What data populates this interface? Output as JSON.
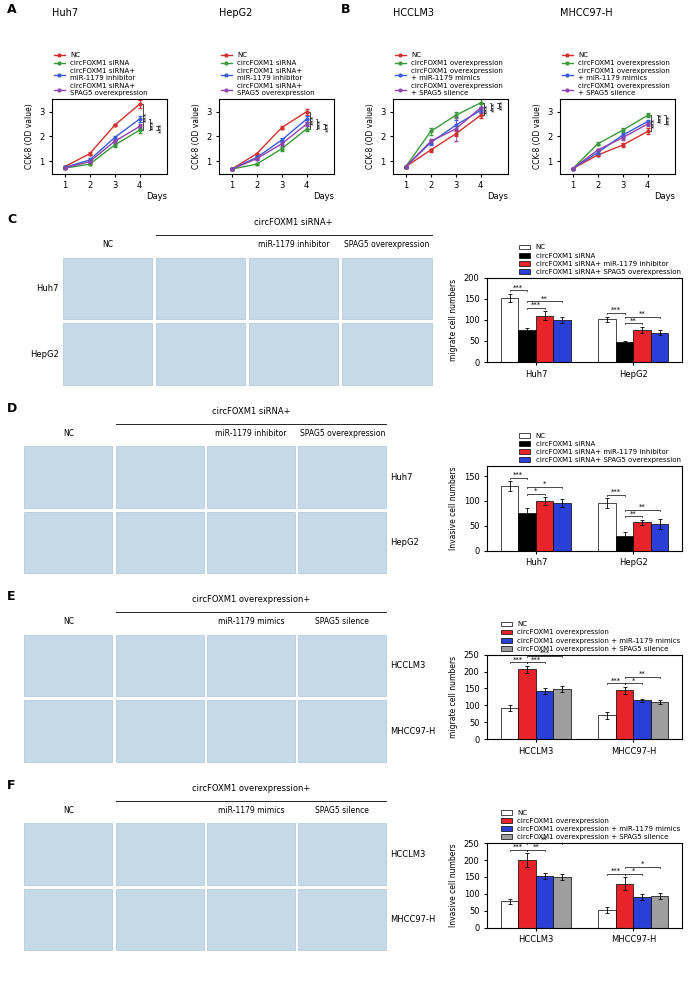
{
  "panel_labels": [
    "A",
    "B",
    "C",
    "D",
    "E",
    "F"
  ],
  "chart_data": [
    {
      "type": "line",
      "title": "Huh7",
      "y_label": "CCK-8 (OD value)",
      "x_label": "Days",
      "x": [
        1,
        2,
        3,
        4
      ],
      "xlim": [
        0.5,
        5.1
      ],
      "xticks": [
        1,
        2,
        3,
        4
      ],
      "ylim": [
        0.5,
        3.5
      ],
      "yticks": [
        1,
        2,
        3
      ],
      "grid": false,
      "legend": "lower left",
      "series": [
        {
          "name": "NC",
          "color": "#d0312d",
          "marker": "o",
          "values": [
            0.78,
            1.3,
            2.45,
            3.3
          ],
          "errors": [
            0.04,
            0.06,
            0.05,
            0.15
          ]
        },
        {
          "name": "circFOXM1 siRNA",
          "color": "#3a9a3a",
          "marker": "o",
          "values": [
            0.72,
            0.88,
            1.65,
            2.25
          ],
          "errors": [
            0.03,
            0.05,
            0.06,
            0.1
          ]
        },
        {
          "name": "circFOXM1 siRNA+\nmiR-1179 inhibitor",
          "color": "#3b5bdb",
          "marker": "o",
          "values": [
            0.75,
            1.05,
            1.95,
            2.7
          ],
          "errors": [
            0.03,
            0.06,
            0.08,
            0.12
          ]
        },
        {
          "name": "circFOXM1 siRNA+\nSPAG5 overexpression",
          "color": "#8e44ad",
          "marker": "o",
          "values": [
            0.73,
            0.98,
            1.8,
            2.4
          ],
          "errors": [
            0.03,
            0.05,
            0.07,
            0.1
          ]
        }
      ],
      "annotations": [
        {
          "text": "***",
          "between": [
            0,
            1
          ]
        },
        {
          "text": "***",
          "between": [
            1,
            2
          ]
        },
        {
          "text": "***",
          "between": [
            1,
            3
          ]
        }
      ]
    },
    {
      "type": "line",
      "title": "HepG2",
      "y_label": "CCK-8 (OD value)",
      "x_label": "Days",
      "x": [
        1,
        2,
        3,
        4
      ],
      "xlim": [
        0.5,
        5.1
      ],
      "xticks": [
        1,
        2,
        3,
        4
      ],
      "ylim": [
        0.5,
        3.5
      ],
      "yticks": [
        1,
        2,
        3
      ],
      "grid": false,
      "legend": "lower left",
      "series": [
        {
          "name": "NC",
          "color": "#d0312d",
          "marker": "o",
          "values": [
            0.68,
            1.3,
            2.35,
            3.0
          ],
          "errors": [
            0.03,
            0.05,
            0.06,
            0.12
          ]
        },
        {
          "name": "circFOXM1 siRNA",
          "color": "#3a9a3a",
          "marker": "o",
          "values": [
            0.68,
            0.88,
            1.5,
            2.3
          ],
          "errors": [
            0.03,
            0.05,
            0.07,
            0.1
          ]
        },
        {
          "name": "circFOXM1 siRNA+\nmiR-1179 inhibitor",
          "color": "#3b5bdb",
          "marker": "o",
          "values": [
            0.68,
            1.15,
            1.85,
            2.7
          ],
          "errors": [
            0.03,
            0.06,
            0.08,
            0.12
          ]
        },
        {
          "name": "circFOXM1 siRNA+\nSPAG5 overexpression",
          "color": "#8e44ad",
          "marker": "o",
          "values": [
            0.68,
            1.1,
            1.7,
            2.5
          ],
          "errors": [
            0.03,
            0.05,
            0.07,
            0.1
          ]
        }
      ],
      "annotations": [
        {
          "text": "***",
          "between": [
            0,
            1
          ]
        },
        {
          "text": "***",
          "between": [
            1,
            2
          ]
        },
        {
          "text": "***",
          "between": [
            1,
            3
          ]
        }
      ]
    },
    {
      "type": "line",
      "title": "HCCLM3",
      "y_label": "CCK-8 (OD value)",
      "x_label": "Days",
      "x": [
        1,
        2,
        3,
        4
      ],
      "xlim": [
        0.5,
        5.1
      ],
      "xticks": [
        1,
        2,
        3,
        4
      ],
      "ylim": [
        0.5,
        3.5
      ],
      "yticks": [
        1,
        2,
        3
      ],
      "grid": false,
      "legend": "lower left",
      "series": [
        {
          "name": "NC",
          "color": "#d0312d",
          "marker": "o",
          "values": [
            0.78,
            1.45,
            2.1,
            2.85
          ],
          "errors": [
            0.04,
            0.06,
            0.1,
            0.12
          ]
        },
        {
          "name": "circFOXM1 overexpression",
          "color": "#3a9a3a",
          "marker": "o",
          "values": [
            0.78,
            2.2,
            2.85,
            3.35
          ],
          "errors": [
            0.04,
            0.15,
            0.12,
            0.15
          ]
        },
        {
          "name": "circFOXM1 overexpression\n+ miR-1179 mimics",
          "color": "#3b5bdb",
          "marker": "o",
          "values": [
            0.78,
            1.75,
            2.45,
            3.05
          ],
          "errors": [
            0.04,
            0.1,
            0.2,
            0.12
          ]
        },
        {
          "name": "circFOXM1 overexpression\n+ SPAG5 silence",
          "color": "#8e44ad",
          "marker": "o",
          "values": [
            0.78,
            1.8,
            2.3,
            3.15
          ],
          "errors": [
            0.04,
            0.1,
            0.5,
            0.15
          ]
        }
      ],
      "annotations": [
        {
          "text": "***",
          "between": [
            0,
            1
          ]
        },
        {
          "text": "***",
          "between": [
            1,
            2
          ]
        },
        {
          "text": "***",
          "between": [
            1,
            3
          ]
        }
      ]
    },
    {
      "type": "line",
      "title": "MHCC97-H",
      "y_label": "CCK-8 (OD value)",
      "x_label": "Days",
      "x": [
        1,
        2,
        3,
        4
      ],
      "xlim": [
        0.5,
        5.1
      ],
      "xticks": [
        1,
        2,
        3,
        4
      ],
      "ylim": [
        0.5,
        3.5
      ],
      "yticks": [
        1,
        2,
        3
      ],
      "grid": false,
      "legend": "lower left",
      "series": [
        {
          "name": "NC",
          "color": "#d0312d",
          "marker": "o",
          "values": [
            0.7,
            1.25,
            1.65,
            2.2
          ],
          "errors": [
            0.03,
            0.05,
            0.08,
            0.12
          ]
        },
        {
          "name": "circFOXM1 overexpression",
          "color": "#3a9a3a",
          "marker": "o",
          "values": [
            0.7,
            1.7,
            2.25,
            2.85
          ],
          "errors": [
            0.03,
            0.06,
            0.08,
            0.08
          ]
        },
        {
          "name": "circFOXM1 overexpression\n+ miR-1179 mimics",
          "color": "#3b5bdb",
          "marker": "o",
          "values": [
            0.7,
            1.35,
            2.05,
            2.6
          ],
          "errors": [
            0.03,
            0.05,
            0.08,
            0.08
          ]
        },
        {
          "name": "circFOXM1 overexpression\n+ SPAG5 silence",
          "color": "#8e44ad",
          "marker": "o",
          "values": [
            0.7,
            1.45,
            1.95,
            2.5
          ],
          "errors": [
            0.03,
            0.05,
            0.08,
            0.08
          ]
        }
      ],
      "annotations": [
        {
          "text": "***",
          "between": [
            0,
            1
          ]
        },
        {
          "text": "***",
          "between": [
            1,
            2
          ]
        },
        {
          "text": "***",
          "between": [
            1,
            3
          ]
        }
      ]
    },
    {
      "type": "bar",
      "y_label": "migrate cell numbers",
      "categories": [
        "Huh7",
        "HepG2"
      ],
      "ylim": [
        0,
        200
      ],
      "yticks": [
        0,
        50,
        100,
        150,
        200
      ],
      "grid": false,
      "legend": "lower right",
      "series": [
        {
          "name": "NC",
          "color": "#ffffff",
          "values": [
            152,
            102
          ],
          "errors": [
            10,
            6
          ]
        },
        {
          "name": "circFOXM1 siRNA",
          "color": "#000000",
          "values": [
            75,
            47
          ],
          "errors": [
            5,
            4
          ]
        },
        {
          "name": "circFOXM1 siRNA+ miR-1179 inhibitor",
          "color": "#e8242a",
          "values": [
            110,
            77
          ],
          "errors": [
            10,
            7
          ]
        },
        {
          "name": "circFOXM1 siRNA+ SPAG5 overexpression",
          "color": "#2a3fd6",
          "values": [
            100,
            70
          ],
          "errors": [
            8,
            5
          ]
        }
      ],
      "annotations": [
        {
          "text": "***",
          "category": 0,
          "between": [
            0,
            1
          ]
        },
        {
          "text": "***",
          "category": 0,
          "between": [
            1,
            2
          ]
        },
        {
          "text": "**",
          "category": 0,
          "between": [
            1,
            3
          ]
        },
        {
          "text": "***",
          "category": 1,
          "between": [
            0,
            1
          ]
        },
        {
          "text": "**",
          "category": 1,
          "between": [
            1,
            2
          ]
        },
        {
          "text": "**",
          "category": 1,
          "between": [
            1,
            3
          ]
        }
      ]
    },
    {
      "type": "bar",
      "y_label": "Invasive cell numbers",
      "categories": [
        "Huh7",
        "HepG2"
      ],
      "ylim": [
        0,
        170
      ],
      "yticks": [
        0,
        50,
        100,
        150
      ],
      "grid": false,
      "legend": "lower right",
      "series": [
        {
          "name": "NC",
          "color": "#ffffff",
          "values": [
            130,
            95
          ],
          "errors": [
            10,
            10
          ]
        },
        {
          "name": "circFOXM1 siRNA",
          "color": "#000000",
          "values": [
            75,
            30
          ],
          "errors": [
            10,
            8
          ]
        },
        {
          "name": "circFOXM1 siRNA+ miR-1179 inhibitor",
          "color": "#e8242a",
          "values": [
            100,
            57
          ],
          "errors": [
            8,
            5
          ]
        },
        {
          "name": "circFOXM1 siRNA+ SPAG5 overexpression",
          "color": "#2a3fd6",
          "values": [
            95,
            53
          ],
          "errors": [
            8,
            10
          ]
        }
      ],
      "annotations": [
        {
          "text": "***",
          "category": 0,
          "between": [
            0,
            1
          ]
        },
        {
          "text": "*",
          "category": 0,
          "between": [
            1,
            2
          ]
        },
        {
          "text": "*",
          "category": 0,
          "between": [
            1,
            3
          ]
        },
        {
          "text": "***",
          "category": 1,
          "between": [
            0,
            1
          ]
        },
        {
          "text": "**",
          "category": 1,
          "between": [
            1,
            2
          ]
        },
        {
          "text": "**",
          "category": 1,
          "between": [
            1,
            3
          ]
        }
      ]
    },
    {
      "type": "bar",
      "y_label": "migrate cell numbers",
      "categories": [
        "HCCLM3",
        "MHCC97-H"
      ],
      "ylim": [
        0,
        250
      ],
      "yticks": [
        0,
        50,
        100,
        150,
        200,
        250
      ],
      "grid": false,
      "legend": "lower right",
      "series": [
        {
          "name": "NC",
          "color": "#ffffff",
          "values": [
            92,
            70
          ],
          "errors": [
            8,
            10
          ]
        },
        {
          "name": "circFOXM1 overexpression",
          "color": "#e8242a",
          "values": [
            207,
            145
          ],
          "errors": [
            10,
            10
          ]
        },
        {
          "name": "circFOXM1 overexpression + miR-1179 mimics",
          "color": "#2a3fd6",
          "values": [
            143,
            115
          ],
          "errors": [
            8,
            5
          ]
        },
        {
          "name": "circFOXM1 overexpression + SPAG5 silence",
          "color": "#9e9e9e",
          "values": [
            148,
            110
          ],
          "errors": [
            10,
            5
          ]
        }
      ],
      "annotations": [
        {
          "text": "***",
          "category": 0,
          "between": [
            0,
            1
          ]
        },
        {
          "text": "***",
          "category": 0,
          "between": [
            1,
            2
          ]
        },
        {
          "text": "***",
          "category": 0,
          "between": [
            1,
            3
          ]
        },
        {
          "text": "***",
          "category": 1,
          "between": [
            0,
            1
          ]
        },
        {
          "text": "*",
          "category": 1,
          "between": [
            1,
            2
          ]
        },
        {
          "text": "**",
          "category": 1,
          "between": [
            1,
            3
          ]
        }
      ]
    },
    {
      "type": "bar",
      "y_label": "Invasive cell numbers",
      "categories": [
        "HCCLM3",
        "MHCC97-H"
      ],
      "ylim": [
        0,
        250
      ],
      "yticks": [
        0,
        50,
        100,
        150,
        200,
        250
      ],
      "grid": false,
      "legend": "lower right",
      "series": [
        {
          "name": "NC",
          "color": "#ffffff",
          "values": [
            78,
            52
          ],
          "errors": [
            8,
            8
          ]
        },
        {
          "name": "circFOXM1 overexpression",
          "color": "#e8242a",
          "values": [
            200,
            130
          ],
          "errors": [
            20,
            20
          ]
        },
        {
          "name": "circFOXM1 overexpression + miR-1179 mimics",
          "color": "#2a3fd6",
          "values": [
            153,
            90
          ],
          "errors": [
            10,
            8
          ]
        },
        {
          "name": "circFOXM1 overexpression + SPAG5 silence",
          "color": "#9e9e9e",
          "values": [
            150,
            93
          ],
          "errors": [
            10,
            8
          ]
        }
      ],
      "annotations": [
        {
          "text": "***",
          "category": 0,
          "between": [
            0,
            1
          ]
        },
        {
          "text": "**",
          "category": 0,
          "between": [
            1,
            2
          ]
        },
        {
          "text": "**",
          "category": 0,
          "between": [
            1,
            3
          ]
        },
        {
          "text": "***",
          "category": 1,
          "between": [
            0,
            1
          ]
        },
        {
          "text": "*",
          "category": 1,
          "between": [
            1,
            2
          ]
        },
        {
          "text": "*",
          "category": 1,
          "between": [
            1,
            3
          ]
        }
      ]
    }
  ],
  "image_panels": [
    {
      "header": "circFOXM1 siRNA+",
      "columns": [
        "NC",
        null,
        "miR-1179 inhibitor",
        "SPAG5 overexpression"
      ],
      "rows": [
        "Huh7",
        "HepG2"
      ]
    },
    {
      "header": "circFOXM1 siRNA+",
      "columns": [
        "NC",
        null,
        "miR-1179 inhibitor",
        "SPAG5 overexpression"
      ],
      "rows": [
        "Huh7",
        "HepG2"
      ]
    },
    {
      "header": "circFOXM1 overexpression+",
      "columns": [
        "NC",
        null,
        "miR-1179 mimics",
        "SPAG5 silence"
      ],
      "rows": [
        "HCCLM3",
        "MHCC97-H"
      ]
    },
    {
      "header": "circFOXM1 overexpression+",
      "columns": [
        "NC",
        null,
        "miR-1179 mimics",
        "SPAG5 silence"
      ],
      "rows": [
        "HCCLM3",
        "MHCC97-H"
      ]
    }
  ]
}
